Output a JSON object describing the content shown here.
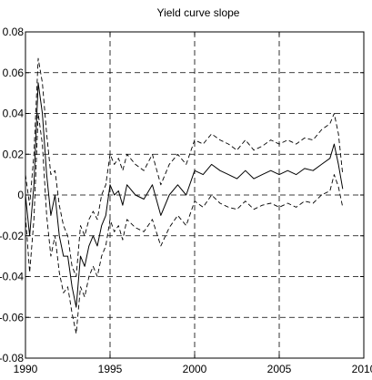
{
  "chart_data": {
    "type": "line",
    "title": "Yield curve slope",
    "xlabel": "",
    "ylabel": "",
    "xlim": [
      1990,
      2010
    ],
    "ylim": [
      -0.08,
      0.08
    ],
    "x_ticks": [
      "1990",
      "1995",
      "2000",
      "2005",
      "2010"
    ],
    "y_ticks": [
      "0.08",
      "0.06",
      "0.04",
      "0.02",
      "0",
      "-0.02",
      "-0.04",
      "-0.06",
      "-0.08"
    ],
    "grid": true,
    "legend": "none",
    "series": [
      {
        "style": "solid",
        "x": [
          1990.0,
          1990.25,
          1990.5,
          1990.75,
          1991.0,
          1991.25,
          1991.5,
          1991.75,
          1992.0,
          1992.25,
          1992.5,
          1992.75,
          1993.0,
          1993.25,
          1993.5,
          1993.75,
          1994.0,
          1994.25,
          1994.5,
          1994.75,
          1995.0,
          1995.25,
          1995.5,
          1995.75,
          1996.0,
          1996.5,
          1997.0,
          1997.5,
          1998.0,
          1998.5,
          1999.0,
          1999.5,
          2000.0,
          2000.5,
          2001.0,
          2001.5,
          2002.0,
          2002.5,
          2003.0,
          2003.5,
          2004.0,
          2004.5,
          2005.0,
          2005.5,
          2006.0,
          2006.5,
          2007.0,
          2007.5,
          2008.0,
          2008.25,
          2008.5,
          2008.75
        ],
        "values": [
          0.0,
          -0.02,
          0.005,
          0.055,
          0.04,
          0.01,
          -0.01,
          0.0,
          -0.02,
          -0.03,
          -0.03,
          -0.045,
          -0.055,
          -0.03,
          -0.035,
          -0.025,
          -0.02,
          -0.025,
          -0.015,
          -0.01,
          0.005,
          0.0,
          0.002,
          -0.005,
          0.005,
          0.0,
          -0.002,
          0.005,
          -0.01,
          0.0,
          0.005,
          0.0,
          0.012,
          0.01,
          0.015,
          0.012,
          0.01,
          0.008,
          0.012,
          0.008,
          0.01,
          0.012,
          0.01,
          0.012,
          0.01,
          0.013,
          0.012,
          0.015,
          0.018,
          0.025,
          0.015,
          0.003
        ]
      },
      {
        "style": "dashed",
        "x": [
          1990.0,
          1990.25,
          1990.5,
          1990.75,
          1991.0,
          1991.25,
          1991.5,
          1991.75,
          1992.0,
          1992.25,
          1992.5,
          1992.75,
          1993.0,
          1993.25,
          1993.5,
          1993.75,
          1994.0,
          1994.25,
          1994.5,
          1994.75,
          1995.0,
          1995.25,
          1995.5,
          1995.75,
          1996.0,
          1996.5,
          1997.0,
          1997.5,
          1998.0,
          1998.5,
          1999.0,
          1999.5,
          2000.0,
          2000.5,
          2001.0,
          2001.5,
          2002.0,
          2002.5,
          2003.0,
          2003.5,
          2004.0,
          2004.5,
          2005.0,
          2005.5,
          2006.0,
          2006.5,
          2007.0,
          2007.5,
          2008.0,
          2008.25,
          2008.5,
          2008.75
        ],
        "values": [
          0.01,
          -0.005,
          0.02,
          0.067,
          0.055,
          0.03,
          0.01,
          0.012,
          -0.005,
          -0.015,
          -0.02,
          -0.035,
          -0.04,
          -0.015,
          -0.02,
          -0.012,
          -0.008,
          -0.012,
          0.0,
          0.005,
          0.02,
          0.015,
          0.018,
          0.012,
          0.02,
          0.015,
          0.012,
          0.02,
          0.005,
          0.015,
          0.02,
          0.015,
          0.027,
          0.025,
          0.03,
          0.027,
          0.025,
          0.022,
          0.027,
          0.022,
          0.024,
          0.027,
          0.025,
          0.027,
          0.025,
          0.028,
          0.027,
          0.032,
          0.035,
          0.04,
          0.03,
          0.01
        ]
      },
      {
        "style": "dashed",
        "x": [
          1990.0,
          1990.25,
          1990.5,
          1990.75,
          1991.0,
          1991.25,
          1991.5,
          1991.75,
          1992.0,
          1992.25,
          1992.5,
          1992.75,
          1993.0,
          1993.25,
          1993.5,
          1993.75,
          1994.0,
          1994.25,
          1994.5,
          1994.75,
          1995.0,
          1995.25,
          1995.5,
          1995.75,
          1996.0,
          1996.5,
          1997.0,
          1997.5,
          1998.0,
          1998.5,
          1999.0,
          1999.5,
          2000.0,
          2000.5,
          2001.0,
          2001.5,
          2002.0,
          2002.5,
          2003.0,
          2003.5,
          2004.0,
          2004.5,
          2005.0,
          2005.5,
          2006.0,
          2006.5,
          2007.0,
          2007.5,
          2008.0,
          2008.25,
          2008.5,
          2008.75
        ],
        "values": [
          -0.01,
          -0.038,
          -0.012,
          0.04,
          0.025,
          -0.01,
          -0.03,
          -0.02,
          -0.038,
          -0.048,
          -0.045,
          -0.058,
          -0.068,
          -0.045,
          -0.05,
          -0.04,
          -0.035,
          -0.04,
          -0.03,
          -0.025,
          -0.012,
          -0.018,
          -0.015,
          -0.022,
          -0.012,
          -0.016,
          -0.018,
          -0.012,
          -0.025,
          -0.016,
          -0.01,
          -0.015,
          -0.003,
          -0.006,
          0.0,
          -0.004,
          -0.006,
          -0.007,
          -0.003,
          -0.007,
          -0.005,
          -0.004,
          -0.006,
          -0.004,
          -0.006,
          -0.003,
          -0.004,
          0.0,
          0.002,
          0.01,
          0.004,
          -0.006
        ]
      }
    ]
  }
}
